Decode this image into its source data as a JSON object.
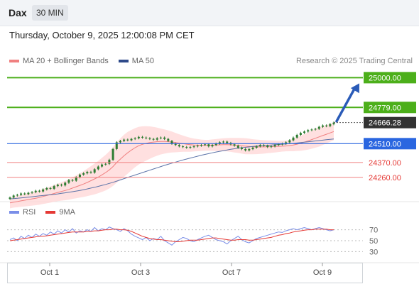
{
  "header": {
    "symbol": "Dax",
    "timeframe": "30 MIN",
    "datetime": "Thursday, October 9, 2025 12:00:08 PM CET"
  },
  "legend": {
    "ma20_label": "MA 20 + Bollinger Bands",
    "ma50_label": "MA 50",
    "copyright": "Research © 2025 Trading Central"
  },
  "rsi_legend": {
    "rsi_label": "RSI",
    "ma_label": "9MA"
  },
  "colors": {
    "candle": "#2e7d32",
    "ma20": "#f08080",
    "bollinger_fill": "#ffd6d6",
    "ma50": "#5b73a8",
    "resistance": "#4caf1a",
    "pivot": "#2a66e0",
    "support": "#f08080",
    "last_price": "#333333",
    "arrow": "#2a5bb8",
    "rsi": "#7a8ee8",
    "rsi_ma": "#e53935"
  },
  "chart_data": {
    "type": "candlestick",
    "x_ticks": [
      "Oct 1",
      "Oct 3",
      "Oct 7",
      "Oct 9"
    ],
    "y_range": [
      24090,
      25060
    ],
    "price_levels": [
      {
        "label": "25000.00",
        "value": 25000,
        "kind": "resistance"
      },
      {
        "label": "24779.00",
        "value": 24779,
        "kind": "resistance"
      },
      {
        "label": "24666.28",
        "value": 24666.28,
        "kind": "last"
      },
      {
        "label": "24510.00",
        "value": 24510,
        "kind": "pivot"
      },
      {
        "label": "24370.00",
        "value": 24370,
        "kind": "support"
      },
      {
        "label": "24260.00",
        "value": 24260,
        "kind": "support"
      }
    ],
    "price_close": [
      24110,
      24125,
      24130,
      24140,
      24135,
      24145,
      24150,
      24160,
      24155,
      24170,
      24180,
      24175,
      24195,
      24205,
      24200,
      24220,
      24240,
      24235,
      24260,
      24280,
      24290,
      24300,
      24295,
      24320,
      24340,
      24355,
      24360,
      24390,
      24470,
      24520,
      24530,
      24540,
      24535,
      24545,
      24550,
      24560,
      24555,
      24550,
      24545,
      24540,
      24550,
      24555,
      24545,
      24530,
      24510,
      24500,
      24490,
      24485,
      24480,
      24485,
      24490,
      24495,
      24500,
      24505,
      24490,
      24500,
      24510,
      24520,
      24525,
      24515,
      24505,
      24495,
      24480,
      24470,
      24460,
      24470,
      24480,
      24490,
      24500,
      24495,
      24485,
      24490,
      24500,
      24505,
      24510,
      24520,
      24535,
      24555,
      24575,
      24590,
      24600,
      24610,
      24615,
      24620,
      24635,
      24645,
      24640,
      24655,
      24666.28
    ],
    "ma20": [
      24070,
      24075,
      24080,
      24085,
      24090,
      24095,
      24100,
      24105,
      24110,
      24118,
      24125,
      24132,
      24140,
      24148,
      24155,
      24162,
      24170,
      24180,
      24190,
      24200,
      24210,
      24222,
      24235,
      24248,
      24262,
      24278,
      24295,
      24315,
      24340,
      24370,
      24395,
      24420,
      24442,
      24462,
      24480,
      24495,
      24505,
      24512,
      24518,
      24522,
      24525,
      24526,
      24526,
      24525,
      24522,
      24518,
      24514,
      24510,
      24506,
      24502,
      24500,
      24499,
      24498,
      24498,
      24498,
      24499,
      24500,
      24501,
      24502,
      24502,
      24501,
      24499,
      24497,
      24494,
      24491,
      24489,
      24487,
      24486,
      24486,
      24486,
      24487,
      24488,
      24489,
      24490,
      24491,
      24493,
      24496,
      24500,
      24506,
      24513,
      24521,
      24530,
      24540,
      24550,
      24560,
      24570,
      24580,
      24590,
      24600
    ],
    "ma50": [
      24100,
      24102,
      24104,
      24107,
      24110,
      24113,
      24116,
      24119,
      24122,
      24125,
      24128,
      24131,
      24134,
      24137,
      24141,
      24145,
      24149,
      24153,
      24158,
      24163,
      24168,
      24174,
      24180,
      24186,
      24193,
      24200,
      24207,
      24215,
      24223,
      24232,
      24241,
      24250,
      24259,
      24268,
      24277,
      24286,
      24295,
      24304,
      24313,
      24322,
      24331,
      24340,
      24349,
      24357,
      24365,
      24373,
      24381,
      24389,
      24396,
      24403,
      24410,
      24417,
      24424,
      24430,
      24436,
      24442,
      24448,
      24453,
      24458,
      24463,
      24468,
      24472,
      24476,
      24480,
      24483,
      24486,
      24489,
      24492,
      24494,
      24496,
      24498,
      24500,
      24502,
      24504,
      24506,
      24508,
      24510,
      24512,
      24515,
      24518,
      24521,
      24524,
      24527,
      24530,
      24533,
      24536,
      24539,
      24542,
      24545
    ],
    "bollinger_width": [
      40,
      40,
      42,
      44,
      46,
      48,
      50,
      52,
      54,
      56,
      58,
      60,
      62,
      65,
      68,
      72,
      76,
      80,
      85,
      90,
      96,
      102,
      108,
      114,
      120,
      126,
      132,
      138,
      144,
      150,
      154,
      156,
      155,
      150,
      145,
      140,
      134,
      128,
      120,
      112,
      104,
      96,
      90,
      84,
      78,
      72,
      66,
      60,
      56,
      52,
      48,
      45,
      42,
      40,
      40,
      42,
      44,
      46,
      48,
      50,
      52,
      54,
      56,
      58,
      60,
      58,
      56,
      54,
      52,
      50,
      48,
      46,
      44,
      42,
      40,
      40,
      42,
      46,
      50,
      56,
      60,
      64,
      68,
      70,
      72,
      70,
      68,
      66,
      64
    ],
    "arrow_target": 25000,
    "rsi": {
      "levels": [
        70,
        50,
        30
      ],
      "range": [
        15,
        85
      ],
      "rsi_values": [
        52,
        55,
        50,
        58,
        54,
        60,
        56,
        62,
        58,
        63,
        60,
        66,
        62,
        68,
        64,
        70,
        66,
        72,
        64,
        68,
        66,
        70,
        67,
        74,
        68,
        72,
        70,
        75,
        72,
        70,
        67,
        72,
        68,
        62,
        58,
        55,
        52,
        56,
        50,
        54,
        52,
        58,
        50,
        46,
        42,
        48,
        52,
        56,
        54,
        50,
        48,
        52,
        55,
        58,
        60,
        56,
        52,
        50,
        48,
        44,
        50,
        54,
        58,
        52,
        48,
        46,
        50,
        54,
        56,
        58,
        60,
        62,
        64,
        66,
        65,
        68,
        70,
        72,
        70,
        72,
        74,
        72,
        70,
        72,
        74,
        72,
        70,
        68,
        70
      ],
      "ma_values": [
        50,
        51,
        52,
        53,
        54,
        55,
        56,
        57,
        58,
        58,
        59,
        60,
        61,
        62,
        63,
        64,
        65,
        66,
        66,
        66,
        66,
        67,
        67,
        68,
        68,
        69,
        70,
        70,
        71,
        71,
        70,
        70,
        69,
        67,
        64,
        61,
        58,
        56,
        54,
        53,
        52,
        52,
        51,
        50,
        49,
        48,
        48,
        49,
        50,
        51,
        51,
        51,
        52,
        53,
        54,
        55,
        55,
        54,
        53,
        52,
        51,
        51,
        52,
        52,
        52,
        51,
        51,
        52,
        53,
        54,
        55,
        56,
        58,
        60,
        61,
        63,
        64,
        66,
        67,
        68,
        69,
        70,
        70,
        71,
        71,
        71,
        71,
        70,
        70
      ]
    }
  }
}
